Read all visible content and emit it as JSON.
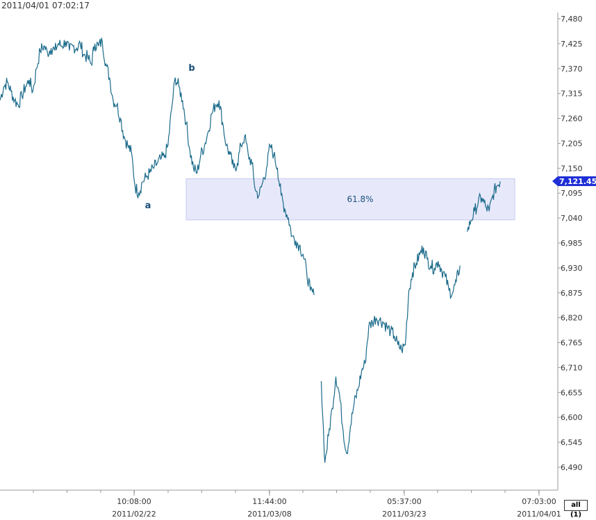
{
  "header": {
    "timestamp": "2011/04/01 07:02:17"
  },
  "controls": {
    "range_button": "all (1)"
  },
  "colors": {
    "series": "#1a6a8a",
    "zone_fill": "#e7e9fb",
    "zone_stroke": "#c5c9ee",
    "last_price_badge": "#1f2fd6",
    "label_text": "#1a4f7a",
    "grid_axis": "#9a9a9a"
  },
  "chart_data": {
    "type": "line",
    "title": "",
    "xlabel": "",
    "ylabel": "",
    "ylim": [
      6460,
      7490
    ],
    "y_ticks": [
      "7,480",
      "7,425",
      "7,370",
      "7,315",
      "7,260",
      "7,205",
      "7,150",
      "7,095",
      "7,040",
      "6,985",
      "6,930",
      "6,875",
      "6,820",
      "6,765",
      "6,710",
      "6,655",
      "6,600",
      "6,545",
      "6,490"
    ],
    "x_ticks": [
      {
        "time": "10:08:00",
        "date": "2011/02/22"
      },
      {
        "time": "11:44:00",
        "date": "2011/03/08"
      },
      {
        "time": "05:37:00",
        "date": "2011/03/23"
      },
      {
        "time": "07:03:00",
        "date": "2011/04/01"
      }
    ],
    "last_price": "7,121.45",
    "retracement_zone": {
      "label": "61.8%",
      "high": 7127,
      "low": 7036
    },
    "wave_labels": [
      {
        "text": "a",
        "price": 7080
      },
      {
        "text": "b",
        "price": 7365
      }
    ],
    "series": [
      {
        "values": [
          7300,
          7330,
          7340,
          7320,
          7300,
          7290,
          7310,
          7330,
          7345,
          7320,
          7370,
          7410,
          7420,
          7405,
          7415,
          7410,
          7425,
          7420,
          7430,
          7410,
          7420,
          7415,
          7425,
          7400,
          7395,
          7380,
          7425,
          7420,
          7430,
          7380,
          7350,
          7300,
          7290,
          7260,
          7220,
          7200,
          7185,
          7110,
          7095,
          7120,
          7130,
          7140,
          7150,
          7160,
          7170,
          7175,
          7200,
          7280,
          7350,
          7330,
          7300,
          7250,
          7190,
          7150,
          7140,
          7180,
          7200,
          7230,
          7270,
          7290,
          7300,
          7250,
          7200,
          7180,
          7150,
          7160,
          7200,
          7220,
          7180,
          7160,
          7100,
          7090,
          7120,
          7150,
          7200,
          7180,
          7150,
          7090,
          7060,
          7040,
          7000,
          6990,
          6980,
          6960,
          6920,
          6880,
          6870,
          null,
          6680,
          6500,
          6560,
          6620,
          6690,
          6650,
          6570,
          6520,
          6580,
          6630,
          6660,
          6700,
          6720,
          6800,
          6810,
          6820,
          6815,
          6810,
          6800,
          6790,
          6780,
          6760,
          6750,
          6760,
          6880,
          6920,
          6940,
          6960,
          6975,
          6950,
          6935,
          6930,
          6945,
          6925,
          6910,
          6880,
          6875,
          6900,
          6935,
          null,
          7010,
          7035,
          7055,
          7075,
          7085,
          7065,
          7055,
          7090,
          7110,
          7121
        ]
      }
    ]
  }
}
